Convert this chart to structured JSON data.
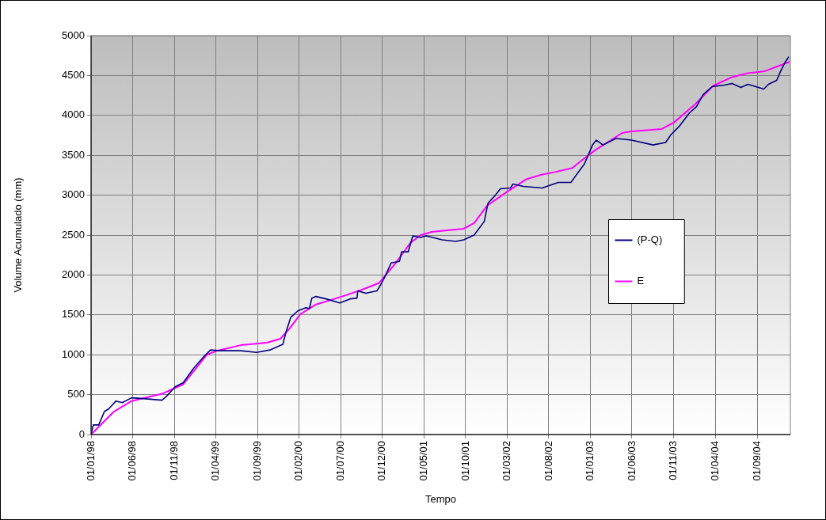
{
  "chart_data": {
    "type": "line",
    "xlabel": "Tempo",
    "ylabel": "Volume Acumulado (mm)",
    "xlim": [
      "1998-01-01",
      "2004-12-31"
    ],
    "xticks": [
      {
        "value": "1998-01-01",
        "label": "01/01/98"
      },
      {
        "value": "1998-06-01",
        "label": "01/06/98"
      },
      {
        "value": "1998-11-01",
        "label": "01/11/98"
      },
      {
        "value": "1999-04-01",
        "label": "01/04/99"
      },
      {
        "value": "1999-09-01",
        "label": "01/09/99"
      },
      {
        "value": "2000-02-01",
        "label": "01/02/00"
      },
      {
        "value": "2000-07-01",
        "label": "01/07/00"
      },
      {
        "value": "2000-12-01",
        "label": "01/12/00"
      },
      {
        "value": "2001-05-01",
        "label": "01/05/01"
      },
      {
        "value": "2001-10-01",
        "label": "01/10/01"
      },
      {
        "value": "2002-03-01",
        "label": "01/03/02"
      },
      {
        "value": "2002-08-01",
        "label": "01/08/02"
      },
      {
        "value": "2003-01-01",
        "label": "01/01/03"
      },
      {
        "value": "2003-06-01",
        "label": "01/06/03"
      },
      {
        "value": "2003-11-01",
        "label": "01/11/03"
      },
      {
        "value": "2004-04-01",
        "label": "01/04/04"
      },
      {
        "value": "2004-09-01",
        "label": "01/09/04"
      }
    ],
    "ylim": [
      0,
      5000
    ],
    "yticks": [
      0,
      500,
      1000,
      1500,
      2000,
      2500,
      3000,
      3500,
      4000,
      4500,
      5000
    ],
    "grid": true,
    "legend": "right",
    "series": [
      {
        "name": "(P-Q)",
        "color": "#000080",
        "x": [
          "1998-01-01",
          "1998-01-09",
          "1998-01-29",
          "1998-02-19",
          "1998-03-06",
          "1998-04-02",
          "1998-04-25",
          "1998-05-29",
          "1998-07-12",
          "1998-09-17",
          "1998-10-01",
          "1998-11-05",
          "1998-12-04",
          "1999-01-11",
          "1999-02-18",
          "1999-03-14",
          "1999-04-15",
          "1999-07-02",
          "1999-08-29",
          "1999-10-17",
          "1999-12-03",
          "1999-12-14",
          "2000-01-01",
          "2000-01-27",
          "2000-02-25",
          "2000-03-09",
          "2000-03-18",
          "2000-04-02",
          "2000-05-09",
          "2000-06-28",
          "2000-08-05",
          "2000-08-30",
          "2000-09-02",
          "2000-10-01",
          "2000-11-11",
          "2000-11-25",
          "2000-12-09",
          "2001-01-02",
          "2001-02-01",
          "2001-02-09",
          "2001-03-05",
          "2001-03-22",
          "2001-04-20",
          "2001-05-10",
          "2001-07-07",
          "2001-08-26",
          "2001-09-24",
          "2001-11-01",
          "2001-12-08",
          "2001-12-22",
          "2002-01-18",
          "2002-02-05",
          "2002-03-14",
          "2002-03-23",
          "2002-04-30",
          "2002-07-08",
          "2002-09-05",
          "2002-10-21",
          "2002-11-11",
          "2002-12-09",
          "2003-01-08",
          "2003-01-22",
          "2003-02-15",
          "2003-04-03",
          "2003-05-30",
          "2003-08-17",
          "2003-10-02",
          "2003-10-22",
          "2003-11-20",
          "2003-12-28",
          "2004-01-23",
          "2004-02-16",
          "2004-03-20",
          "2004-05-03",
          "2004-06-01",
          "2004-07-03",
          "2004-07-29",
          "2004-09-25",
          "2004-10-12",
          "2004-11-11",
          "2004-11-25",
          "2004-12-09",
          "2004-12-24"
        ],
        "values": [
          0,
          120,
          120,
          290,
          320,
          420,
          400,
          460,
          450,
          430,
          470,
          600,
          650,
          830,
          980,
          1060,
          1050,
          1050,
          1030,
          1060,
          1130,
          1280,
          1470,
          1550,
          1590,
          1580,
          1710,
          1730,
          1700,
          1650,
          1700,
          1710,
          1800,
          1770,
          1800,
          1880,
          1970,
          2150,
          2170,
          2290,
          2290,
          2490,
          2470,
          2490,
          2440,
          2420,
          2440,
          2500,
          2670,
          2900,
          3000,
          3080,
          3090,
          3140,
          3110,
          3090,
          3160,
          3160,
          3260,
          3390,
          3630,
          3690,
          3630,
          3710,
          3690,
          3630,
          3660,
          3760,
          3860,
          4030,
          4110,
          4260,
          4360,
          4380,
          4400,
          4350,
          4390,
          4330,
          4390,
          4440,
          4550,
          4650,
          4730
        ]
      },
      {
        "name": "E",
        "color": "#ff00ff",
        "x": [
          "1998-01-01",
          "1998-03-26",
          "1998-05-29",
          "1998-09-17",
          "1998-12-04",
          "1999-02-28",
          "1999-04-06",
          "1999-07-02",
          "1999-10-05",
          "1999-11-24",
          "1999-12-28",
          "2000-02-05",
          "2000-04-02",
          "2000-07-06",
          "2000-09-14",
          "2000-11-19",
          "2001-01-16",
          "2001-03-13",
          "2001-04-20",
          "2001-05-30",
          "2001-09-24",
          "2001-11-01",
          "2001-12-19",
          "2002-02-24",
          "2002-05-11",
          "2002-07-08",
          "2002-08-24",
          "2002-10-26",
          "2002-12-01",
          "2003-01-16",
          "2003-04-26",
          "2003-05-30",
          "2003-09-18",
          "2003-11-01",
          "2004-01-18",
          "2004-03-23",
          "2004-06-01",
          "2004-07-29",
          "2004-09-25",
          "2004-12-27"
        ],
        "values": [
          0,
          290,
          420,
          510,
          630,
          1000,
          1050,
          1120,
          1150,
          1200,
          1330,
          1510,
          1630,
          1730,
          1810,
          1900,
          2140,
          2400,
          2500,
          2540,
          2580,
          2650,
          2870,
          3030,
          3200,
          3260,
          3290,
          3340,
          3440,
          3560,
          3780,
          3800,
          3830,
          3910,
          4140,
          4370,
          4480,
          4530,
          4550,
          4670
        ]
      }
    ]
  }
}
